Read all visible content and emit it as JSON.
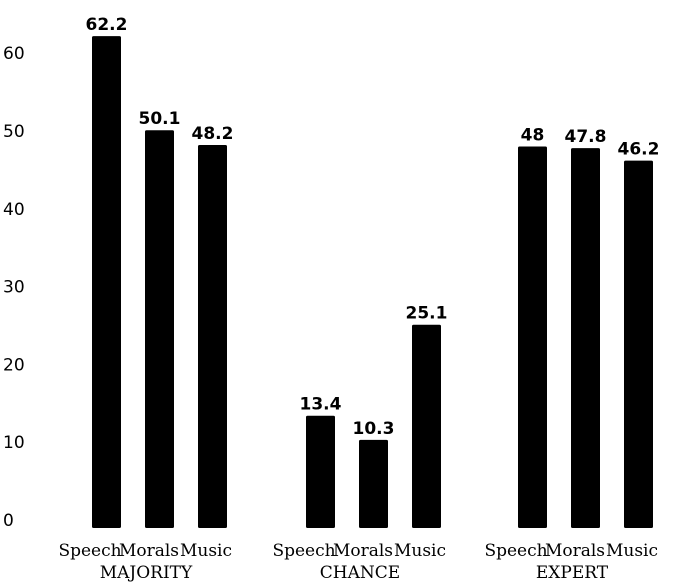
{
  "chart_data": {
    "type": "bar",
    "title": "",
    "xlabel": "",
    "ylabel": "",
    "ylim": [
      0,
      65
    ],
    "yticks": [
      "0",
      "10",
      "20",
      "30",
      "40",
      "50",
      "60"
    ],
    "bar_color": "#000000",
    "groups": [
      {
        "label": "MAJORITY",
        "categories": [
          "Speech",
          "Morals",
          "Music"
        ],
        "values": [
          62.2,
          50.1,
          48.2
        ],
        "value_labels": [
          "62.2",
          "50.1",
          "48.2"
        ]
      },
      {
        "label": "CHANCE",
        "categories": [
          "Speech",
          "Morals",
          "Music"
        ],
        "values": [
          13.4,
          10.3,
          25.1
        ],
        "value_labels": [
          "13.4",
          "10.3",
          "25.1"
        ]
      },
      {
        "label": "EXPERT",
        "categories": [
          "Speech",
          "Morals",
          "Music"
        ],
        "values": [
          48,
          47.8,
          46.2
        ],
        "value_labels": [
          "48",
          "47.8",
          "46.2"
        ]
      }
    ]
  }
}
